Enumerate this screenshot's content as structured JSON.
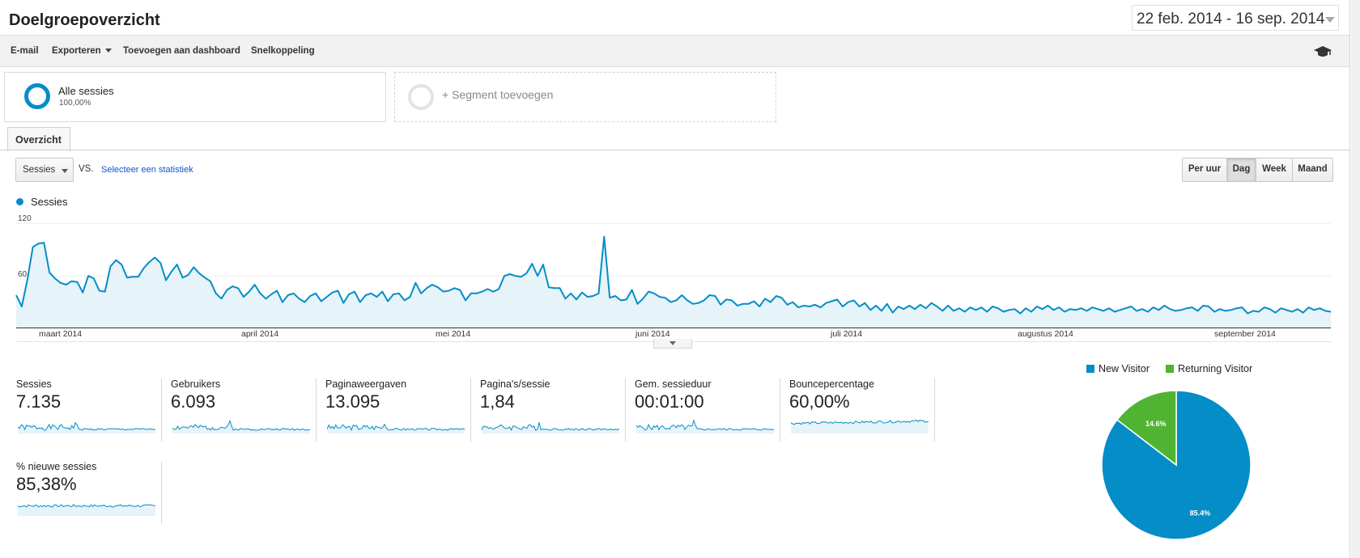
{
  "header": {
    "title": "Doelgroepoverzicht",
    "date_range": "22 feb. 2014 - 16 sep. 2014"
  },
  "toolbar": {
    "email": "E-mail",
    "export": "Exporteren",
    "add_dashboard": "Toevoegen aan dashboard",
    "shortcut": "Snelkoppeling",
    "help_icon": "graduation-cap-icon"
  },
  "segments": {
    "active": {
      "name": "Alle sessies",
      "percent": "100,00%"
    },
    "add_label": "+ Segment toevoegen"
  },
  "tabs": [
    {
      "label": "Overzicht"
    }
  ],
  "controls": {
    "metric": "Sessies",
    "vs": "VS.",
    "select_stat": "Selecteer een statistiek",
    "periods": [
      "Per uur",
      "Dag",
      "Week",
      "Maand"
    ],
    "active_period": "Dag"
  },
  "colors": {
    "primary": "#058dc7",
    "returning": "#50b432",
    "area_fill": "#e6f3f9"
  },
  "chart_data": [
    {
      "type": "area",
      "series": [
        {
          "name": "Sessies"
        }
      ],
      "legend": "top-left",
      "grid": true,
      "ylim": [
        0,
        120
      ],
      "yticks": [
        "120",
        "60"
      ],
      "x_start": "2014-02-22",
      "x_end": "2014-09-16",
      "xtick_labels": [
        "maart 2014",
        "april 2014",
        "mei 2014",
        "juni 2014",
        "juli 2014",
        "augustus 2014",
        "september 2014"
      ],
      "values": [
        38,
        25,
        55,
        93,
        97,
        98,
        64,
        57,
        52,
        50,
        54,
        53,
        41,
        60,
        57,
        43,
        42,
        71,
        78,
        73,
        58,
        59,
        59,
        69,
        76,
        81,
        75,
        55,
        65,
        73,
        58,
        61,
        70,
        63,
        58,
        54,
        40,
        34,
        44,
        48,
        46,
        36,
        42,
        50,
        40,
        34,
        39,
        43,
        30,
        38,
        40,
        34,
        30,
        37,
        40,
        31,
        36,
        41,
        43,
        29,
        39,
        42,
        30,
        38,
        40,
        36,
        42,
        31,
        39,
        40,
        32,
        36,
        52,
        40,
        46,
        50,
        47,
        42,
        43,
        46,
        44,
        32,
        40,
        40,
        42,
        45,
        42,
        45,
        60,
        62,
        60,
        59,
        63,
        74,
        60,
        73,
        47,
        46,
        46,
        34,
        40,
        33,
        41,
        36,
        37,
        40,
        28,
        35,
        37,
        32,
        33,
        44,
        28,
        34,
        42,
        40,
        36,
        35,
        30,
        32,
        38,
        32,
        28,
        29,
        32,
        38,
        37,
        27,
        33,
        32,
        26,
        28,
        28,
        31,
        25,
        34,
        30,
        37,
        35,
        27,
        30,
        24,
        26,
        25,
        27,
        24,
        29,
        31,
        33,
        25,
        30,
        32,
        25,
        29,
        21,
        26,
        20,
        28,
        18,
        25,
        22,
        26,
        22,
        27,
        23,
        29,
        25,
        20,
        26,
        20,
        23,
        19,
        24,
        21,
        24,
        19,
        25,
        23,
        19,
        21,
        22,
        17,
        23,
        19,
        25,
        22,
        26,
        21,
        24,
        19,
        22,
        21,
        23,
        20,
        24,
        22,
        20,
        23,
        19,
        21,
        23,
        25,
        20,
        22,
        19,
        24,
        21,
        26,
        22,
        20,
        21,
        23,
        24,
        20,
        26,
        25,
        19,
        22,
        20,
        21,
        23,
        24,
        17,
        20,
        19,
        24,
        22,
        18,
        23,
        21,
        19,
        22,
        18,
        24,
        21,
        23,
        20,
        19
      ],
      "peak_override": {
        "index": 106,
        "value": 105
      }
    },
    {
      "type": "pie",
      "series": [
        {
          "name": "New Visitor",
          "value": 85.4
        },
        {
          "name": "Returning Visitor",
          "value": 14.6
        }
      ],
      "labels": [
        "85.4%",
        "14.6%"
      ],
      "legend": "top"
    }
  ],
  "metrics": [
    {
      "name": "Sessies",
      "value": "7.135"
    },
    {
      "name": "Gebruikers",
      "value": "6.093"
    },
    {
      "name": "Paginaweergaven",
      "value": "13.095"
    },
    {
      "name": "Pagina's/sessie",
      "value": "1,84"
    },
    {
      "name": "Gem. sessieduur",
      "value": "00:01:00"
    },
    {
      "name": "Bouncepercentage",
      "value": "60,00%"
    },
    {
      "name": "% nieuwe sessies",
      "value": "85,38%"
    }
  ]
}
